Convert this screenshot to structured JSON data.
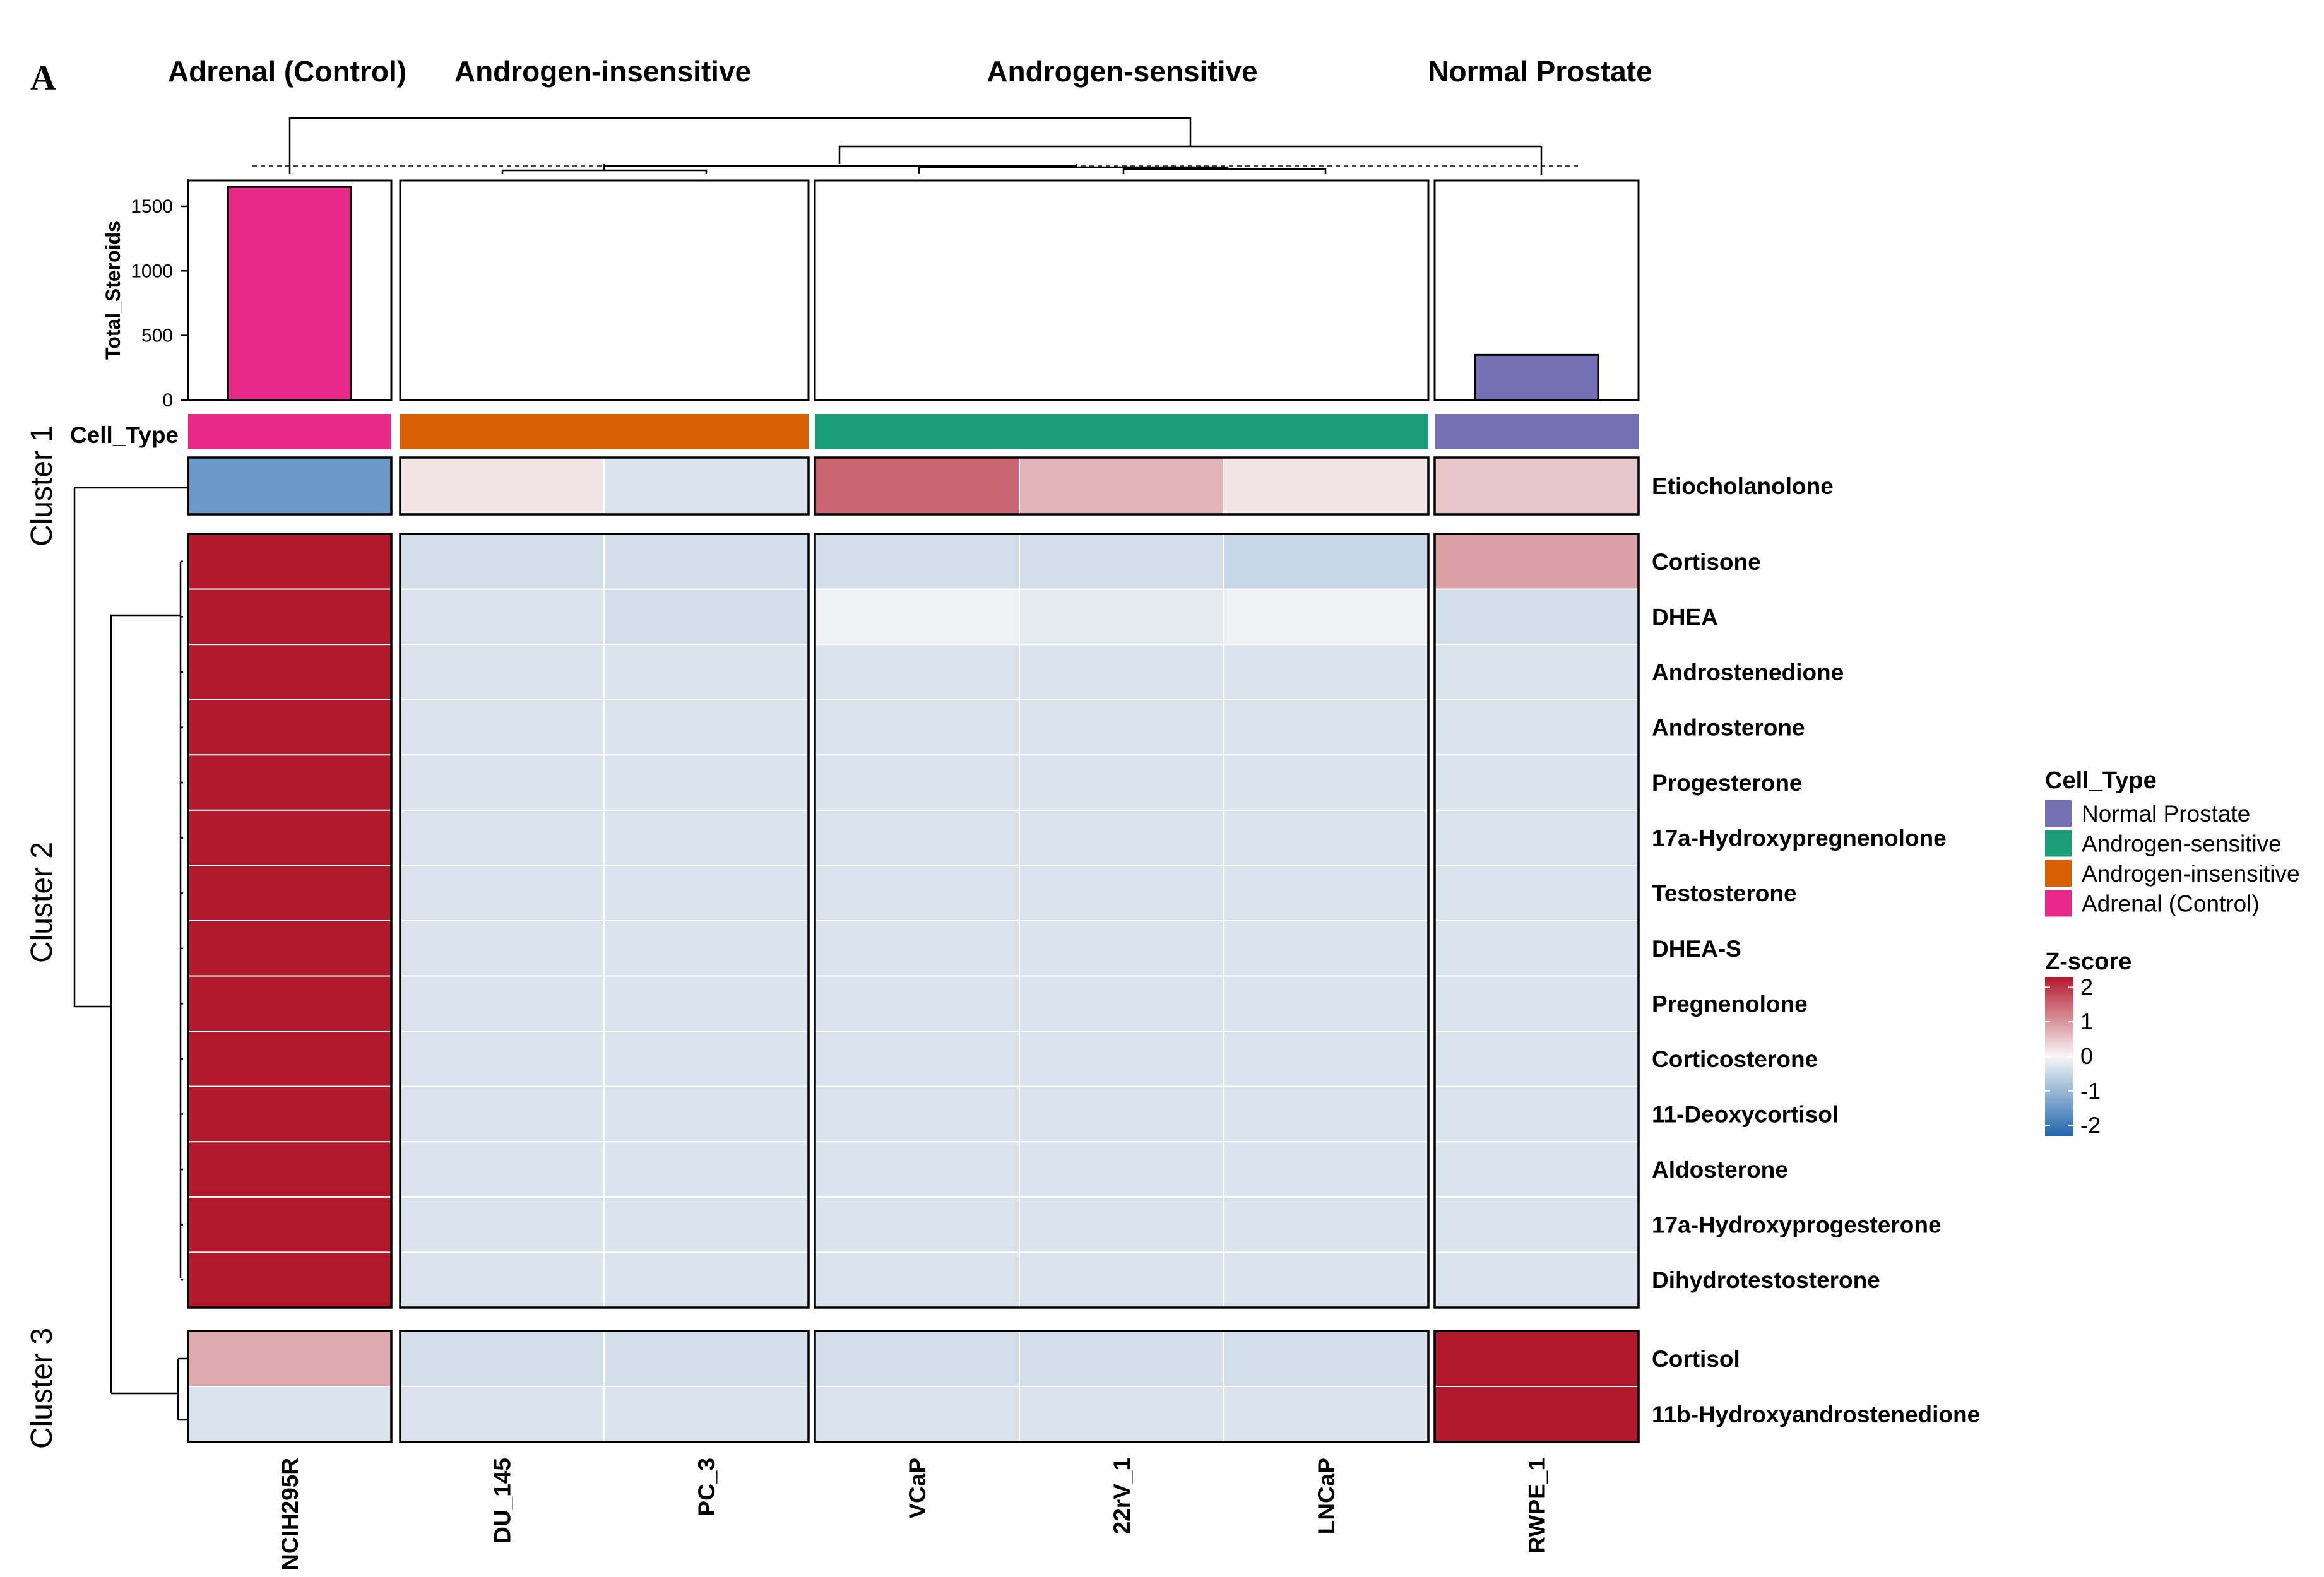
{
  "panel_label": "A",
  "colors": {
    "Adrenal (Control)": "#e7298a",
    "Androgen-insensitive": "#d95f02",
    "Androgen-sensitive": "#1b9e77",
    "Normal Prostate": "#7570b3",
    "zscore_low": "#2166ac",
    "zscore_mid": "#f7f7f7",
    "zscore_high": "#b2182b"
  },
  "chart_data": {
    "type": "heatmap",
    "group_labels": [
      "Adrenal (Control)",
      "Androgen-insensitive",
      "Androgen-sensitive",
      "Normal Prostate"
    ],
    "columns": [
      "NCIH295R",
      "DU_145",
      "PC_3",
      "VCaP",
      "22rV_1",
      "LNCaP",
      "RWPE_1"
    ],
    "column_groups": [
      "Adrenal (Control)",
      "Androgen-insensitive",
      "Androgen-insensitive",
      "Androgen-sensitive",
      "Androgen-sensitive",
      "Androgen-sensitive",
      "Normal Prostate"
    ],
    "bar_annotation": {
      "label": "Total_Steroids",
      "ticks": [
        0,
        500,
        1000,
        1500
      ],
      "ylim": [
        0,
        1700
      ],
      "values": [
        1650,
        0,
        0,
        0,
        0,
        0,
        350
      ]
    },
    "type_annotation_label": "Cell_Type",
    "row_clusters": [
      {
        "label": "Cluster 1",
        "rows": [
          "Etiocholanolone"
        ]
      },
      {
        "label": "Cluster 2",
        "rows": [
          "Cortisone",
          "DHEA",
          "Androstenedione",
          "Androsterone",
          "Progesterone",
          "17a-Hydroxypregnenolone",
          "Testosterone",
          "DHEA-S",
          "Pregnenolone",
          "Corticosterone",
          "11-Deoxycortisol",
          "Aldosterone",
          "17a-Hydroxyprogesterone",
          "Dihydrotestosterone"
        ]
      },
      {
        "label": "Cluster 3",
        "rows": [
          "Cortisol",
          "11b-Hydroxyandrostenedione"
        ]
      }
    ],
    "values": [
      [
        -1.5,
        0.2,
        -0.3,
        1.5,
        0.7,
        0.2,
        0.5
      ],
      [
        2.3,
        -0.4,
        -0.4,
        -0.4,
        -0.4,
        -0.5,
        0.9
      ],
      [
        2.3,
        -0.3,
        -0.4,
        -0.1,
        -0.2,
        -0.1,
        -0.4
      ],
      [
        2.3,
        -0.3,
        -0.3,
        -0.3,
        -0.3,
        -0.3,
        -0.3
      ],
      [
        2.3,
        -0.3,
        -0.3,
        -0.3,
        -0.3,
        -0.3,
        -0.3
      ],
      [
        2.3,
        -0.3,
        -0.3,
        -0.3,
        -0.3,
        -0.3,
        -0.3
      ],
      [
        2.3,
        -0.3,
        -0.3,
        -0.3,
        -0.3,
        -0.3,
        -0.3
      ],
      [
        2.3,
        -0.3,
        -0.3,
        -0.3,
        -0.3,
        -0.3,
        -0.3
      ],
      [
        2.3,
        -0.3,
        -0.3,
        -0.3,
        -0.3,
        -0.3,
        -0.3
      ],
      [
        2.3,
        -0.3,
        -0.3,
        -0.3,
        -0.3,
        -0.3,
        -0.3
      ],
      [
        2.3,
        -0.3,
        -0.3,
        -0.3,
        -0.3,
        -0.3,
        -0.3
      ],
      [
        2.3,
        -0.3,
        -0.3,
        -0.3,
        -0.3,
        -0.3,
        -0.3
      ],
      [
        2.3,
        -0.3,
        -0.3,
        -0.3,
        -0.3,
        -0.3,
        -0.3
      ],
      [
        2.3,
        -0.3,
        -0.3,
        -0.3,
        -0.3,
        -0.3,
        -0.3
      ],
      [
        2.3,
        -0.3,
        -0.3,
        -0.3,
        -0.3,
        -0.3,
        -0.3
      ],
      [
        0.8,
        -0.4,
        -0.4,
        -0.4,
        -0.4,
        -0.4,
        2.3
      ],
      [
        -0.3,
        -0.3,
        -0.3,
        -0.3,
        -0.3,
        -0.3,
        2.3
      ]
    ],
    "legend_cell_type": {
      "title": "Cell_Type",
      "entries": [
        "Normal Prostate",
        "Androgen-sensitive",
        "Androgen-insensitive",
        "Adrenal (Control)"
      ]
    },
    "legend_zscore": {
      "title": "Z-score",
      "ticks": [
        2,
        1,
        0,
        -1,
        -2
      ],
      "range": [
        -2.3,
        2.3
      ]
    }
  }
}
